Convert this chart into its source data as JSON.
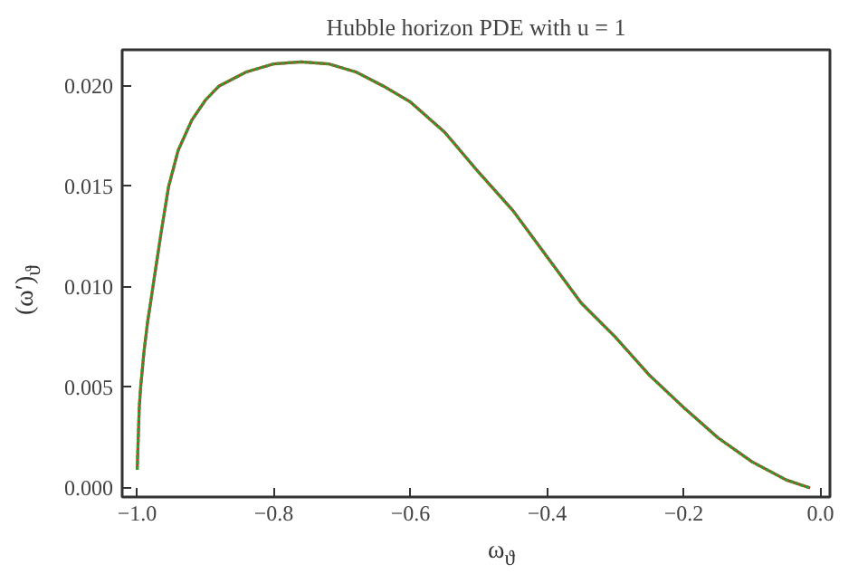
{
  "chart_data": {
    "type": "line",
    "title": "Hubble horizon PDE with u = 1",
    "xlabel": "ω$_{ϑ}$",
    "ylabel": "(ω′)$_{ϑ}$",
    "x": [
      -1.0,
      -0.997,
      -0.995,
      -0.99,
      -0.985,
      -0.977,
      -0.965,
      -0.954,
      -0.94,
      -0.92,
      -0.9,
      -0.88,
      -0.84,
      -0.8,
      -0.76,
      -0.72,
      -0.68,
      -0.64,
      -0.6,
      -0.55,
      -0.5,
      -0.45,
      -0.4,
      -0.35,
      -0.3,
      -0.25,
      -0.2,
      -0.15,
      -0.1,
      -0.05,
      -0.015
    ],
    "series": [
      {
        "color": "#c0392b",
        "line_style": "solid",
        "values": [
          0.0009,
          0.004,
          0.005,
          0.0068,
          0.0082,
          0.01,
          0.0127,
          0.015,
          0.0168,
          0.0183,
          0.0193,
          0.02,
          0.0207,
          0.0211,
          0.0212,
          0.0211,
          0.0207,
          0.02,
          0.0192,
          0.0177,
          0.0157,
          0.0138,
          0.0115,
          0.0092,
          0.0075,
          0.0056,
          0.004,
          0.0025,
          0.0013,
          0.0004,
          0.0
        ]
      },
      {
        "color": "#2ca02c",
        "line_style": "dotted",
        "values": [
          0.0009,
          0.004,
          0.005,
          0.0068,
          0.0082,
          0.01,
          0.0127,
          0.015,
          0.0168,
          0.0183,
          0.0193,
          0.02,
          0.0207,
          0.0211,
          0.0212,
          0.0211,
          0.0207,
          0.02,
          0.0192,
          0.0177,
          0.0157,
          0.0138,
          0.0115,
          0.0092,
          0.0075,
          0.0056,
          0.004,
          0.0025,
          0.0013,
          0.0004,
          0.0
        ]
      }
    ],
    "xlim": [
      -1.022,
      0.014
    ],
    "ylim": [
      -0.00045,
      0.0218
    ],
    "xticks": [
      {
        "value": -1.0,
        "label": "−1.0"
      },
      {
        "value": -0.8,
        "label": "−0.8"
      },
      {
        "value": -0.6,
        "label": "−0.6"
      },
      {
        "value": -0.4,
        "label": "−0.4"
      },
      {
        "value": -0.2,
        "label": "−0.2"
      },
      {
        "value": 0.0,
        "label": "0.0"
      }
    ],
    "yticks": [
      {
        "value": 0.0,
        "label": "0.000"
      },
      {
        "value": 0.005,
        "label": "0.005"
      },
      {
        "value": 0.01,
        "label": "0.010"
      },
      {
        "value": 0.015,
        "label": "0.015"
      },
      {
        "value": 0.02,
        "label": "0.020"
      }
    ],
    "grid": false
  }
}
